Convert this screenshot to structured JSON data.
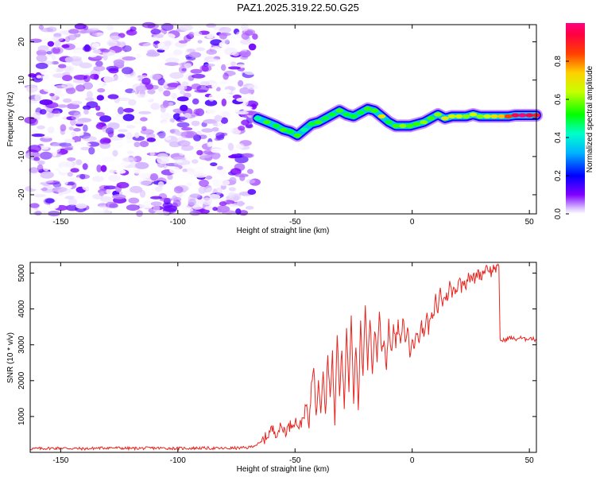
{
  "title": "PAZ1.2025.319.22.50.G25",
  "colors": {
    "snr_line": "#e8251f",
    "noise_purple": "#7a00ff",
    "frame": "#000000"
  },
  "colorbar": {
    "label": "Normalized spectral amplitude",
    "ticks": [
      "0.0",
      "0.2",
      "0.4",
      "0.6",
      "0.8"
    ],
    "range": [
      0,
      1
    ],
    "colormap": "hsv-rainbow"
  },
  "chart_data": [
    {
      "type": "heatmap",
      "xlabel": "Height of straight line (km)",
      "ylabel": "Frequency (Hz)",
      "xlim": [
        -163,
        53
      ],
      "ylim": [
        -25,
        24.5
      ],
      "xticks": [
        {
          "v": -150,
          "label": "-150"
        },
        {
          "v": -100,
          "label": "-100"
        },
        {
          "v": -50,
          "label": "-50"
        },
        {
          "v": 0,
          "label": "0"
        },
        {
          "v": 50,
          "label": "50"
        }
      ],
      "yticks": [
        {
          "v": -20,
          "label": "-20"
        },
        {
          "v": -10,
          "label": "-10"
        },
        {
          "v": 0,
          "label": "0"
        },
        {
          "v": 10,
          "label": "10"
        },
        {
          "v": 20,
          "label": "20"
        }
      ],
      "noise_region_x": [
        -163,
        -67
      ],
      "noise_amplitude_range": [
        0.0,
        0.15
      ],
      "signal_ridge": [
        {
          "x": -66,
          "f": 0.0,
          "a": 0.45
        },
        {
          "x": -62,
          "f": -1.0,
          "a": 0.55
        },
        {
          "x": -58,
          "f": -2.0,
          "a": 0.5
        },
        {
          "x": -55,
          "f": -3.0,
          "a": 0.55
        },
        {
          "x": -52,
          "f": -3.5,
          "a": 0.5
        },
        {
          "x": -49,
          "f": -4.5,
          "a": 0.55
        },
        {
          "x": -46,
          "f": -3.0,
          "a": 0.45
        },
        {
          "x": -43,
          "f": -1.5,
          "a": 0.5
        },
        {
          "x": -40,
          "f": -1.0,
          "a": 0.55
        },
        {
          "x": -37,
          "f": 0.0,
          "a": 0.5
        },
        {
          "x": -34,
          "f": 1.0,
          "a": 0.5
        },
        {
          "x": -31,
          "f": 2.0,
          "a": 0.55
        },
        {
          "x": -28,
          "f": 1.0,
          "a": 0.5
        },
        {
          "x": -25,
          "f": 0.5,
          "a": 0.5
        },
        {
          "x": -22,
          "f": 1.5,
          "a": 0.5
        },
        {
          "x": -19,
          "f": 2.5,
          "a": 0.55
        },
        {
          "x": -16,
          "f": 2.0,
          "a": 0.55
        },
        {
          "x": -13,
          "f": 0.5,
          "a": 0.7
        },
        {
          "x": -10,
          "f": -1.0,
          "a": 0.5
        },
        {
          "x": -7,
          "f": -2.0,
          "a": 0.55
        },
        {
          "x": -4,
          "f": -2.0,
          "a": 0.6
        },
        {
          "x": -1,
          "f": -2.0,
          "a": 0.55
        },
        {
          "x": 2,
          "f": -1.5,
          "a": 0.55
        },
        {
          "x": 5,
          "f": -1.0,
          "a": 0.6
        },
        {
          "x": 8,
          "f": 0.0,
          "a": 0.55
        },
        {
          "x": 11,
          "f": 1.0,
          "a": 0.6
        },
        {
          "x": 14,
          "f": 0.0,
          "a": 0.7
        },
        {
          "x": 17,
          "f": 0.5,
          "a": 0.65
        },
        {
          "x": 20,
          "f": 0.5,
          "a": 0.65
        },
        {
          "x": 23,
          "f": 0.5,
          "a": 0.6
        },
        {
          "x": 26,
          "f": 1.0,
          "a": 0.65
        },
        {
          "x": 29,
          "f": 0.5,
          "a": 0.6
        },
        {
          "x": 32,
          "f": 0.5,
          "a": 0.65
        },
        {
          "x": 35,
          "f": 0.5,
          "a": 0.7
        },
        {
          "x": 38,
          "f": 0.5,
          "a": 0.75
        },
        {
          "x": 41,
          "f": 0.5,
          "a": 0.85
        },
        {
          "x": 44,
          "f": 0.8,
          "a": 0.95
        },
        {
          "x": 47,
          "f": 0.8,
          "a": 1.0
        },
        {
          "x": 50,
          "f": 0.8,
          "a": 0.95
        },
        {
          "x": 53,
          "f": 0.8,
          "a": 0.9
        }
      ]
    },
    {
      "type": "line",
      "xlabel": "Height of straight line (km)",
      "ylabel": "SNR (10 * v/v)",
      "xlim": [
        -163,
        53
      ],
      "ylim": [
        0,
        5300
      ],
      "xticks": [
        {
          "v": -150,
          "label": "-150"
        },
        {
          "v": -100,
          "label": "-100"
        },
        {
          "v": -50,
          "label": "-50"
        },
        {
          "v": 0,
          "label": "0"
        },
        {
          "v": 50,
          "label": "50"
        }
      ],
      "yticks": [
        {
          "v": 1000,
          "label": "1000"
        },
        {
          "v": 2000,
          "label": "2000"
        },
        {
          "v": 3000,
          "label": "3000"
        },
        {
          "v": 4000,
          "label": "4000"
        },
        {
          "v": 5000,
          "label": "5000"
        }
      ],
      "series": [
        {
          "points": [
            [
              -163,
              100
            ],
            [
              -150,
              120
            ],
            [
              -140,
              100
            ],
            [
              -130,
              130
            ],
            [
              -120,
              110
            ],
            [
              -110,
              120
            ],
            [
              -100,
              110
            ],
            [
              -90,
              120
            ],
            [
              -80,
              110
            ],
            [
              -70,
              130
            ],
            [
              -65,
              250
            ],
            [
              -62,
              450
            ],
            [
              -60,
              650
            ],
            [
              -58,
              550
            ],
            [
              -56,
              700
            ],
            [
              -54,
              600
            ],
            [
              -52,
              750
            ],
            [
              -50,
              900
            ],
            [
              -48,
              700
            ],
            [
              -46,
              1100
            ],
            [
              -45,
              1300
            ],
            [
              -44,
              600
            ],
            [
              -43,
              1900
            ],
            [
              -42,
              2500
            ],
            [
              -41,
              900
            ],
            [
              -40,
              2100
            ],
            [
              -39,
              1200
            ],
            [
              -38,
              2400
            ],
            [
              -37,
              1000
            ],
            [
              -36,
              2800
            ],
            [
              -35,
              1500
            ],
            [
              -34,
              2700
            ],
            [
              -33,
              800
            ],
            [
              -32,
              3300
            ],
            [
              -31,
              1600
            ],
            [
              -30,
              2900
            ],
            [
              -29,
              1200
            ],
            [
              -28,
              3500
            ],
            [
              -27,
              1800
            ],
            [
              -26,
              3900
            ],
            [
              -25,
              1500
            ],
            [
              -24,
              3000
            ],
            [
              -23,
              1100
            ],
            [
              -22,
              3600
            ],
            [
              -21,
              2000
            ],
            [
              -20,
              4200
            ],
            [
              -19,
              2400
            ],
            [
              -18,
              3800
            ],
            [
              -17,
              2100
            ],
            [
              -16,
              3500
            ],
            [
              -15,
              2600
            ],
            [
              -14,
              3900
            ],
            [
              -13,
              2800
            ],
            [
              -12,
              3200
            ],
            [
              -11,
              2300
            ],
            [
              -10,
              3700
            ],
            [
              -9,
              2700
            ],
            [
              -8,
              3500
            ],
            [
              -7,
              3000
            ],
            [
              -6,
              3600
            ],
            [
              -5,
              2900
            ],
            [
              -4,
              3800
            ],
            [
              -3,
              3100
            ],
            [
              -2,
              3500
            ],
            [
              -1,
              2700
            ],
            [
              0,
              3300
            ],
            [
              1,
              2900
            ],
            [
              2,
              3400
            ],
            [
              3,
              3100
            ],
            [
              4,
              3600
            ],
            [
              5,
              3200
            ],
            [
              6,
              3900
            ],
            [
              7,
              3400
            ],
            [
              8,
              3800
            ],
            [
              9,
              3700
            ],
            [
              10,
              4300
            ],
            [
              11,
              3900
            ],
            [
              12,
              4600
            ],
            [
              13,
              4100
            ],
            [
              14,
              4400
            ],
            [
              15,
              4300
            ],
            [
              16,
              4700
            ],
            [
              17,
              4400
            ],
            [
              18,
              4600
            ],
            [
              19,
              4500
            ],
            [
              20,
              4900
            ],
            [
              21,
              4600
            ],
            [
              22,
              4800
            ],
            [
              23,
              4700
            ],
            [
              24,
              5000
            ],
            [
              25,
              4800
            ],
            [
              26,
              4900
            ],
            [
              27,
              4800
            ],
            [
              28,
              5100
            ],
            [
              29,
              4900
            ],
            [
              30,
              5000
            ],
            [
              31,
              5100
            ],
            [
              32,
              5200
            ],
            [
              33,
              5100
            ],
            [
              34,
              5000
            ],
            [
              35,
              5200
            ],
            [
              36,
              5100
            ],
            [
              37,
              5100
            ],
            [
              37.5,
              3200
            ],
            [
              38,
              3100
            ],
            [
              40,
              3150
            ],
            [
              42,
              3200
            ],
            [
              44,
              3150
            ],
            [
              46,
              3200
            ],
            [
              48,
              3150
            ],
            [
              50,
              3200
            ],
            [
              52,
              3150
            ],
            [
              53,
              3150
            ]
          ]
        }
      ]
    }
  ]
}
